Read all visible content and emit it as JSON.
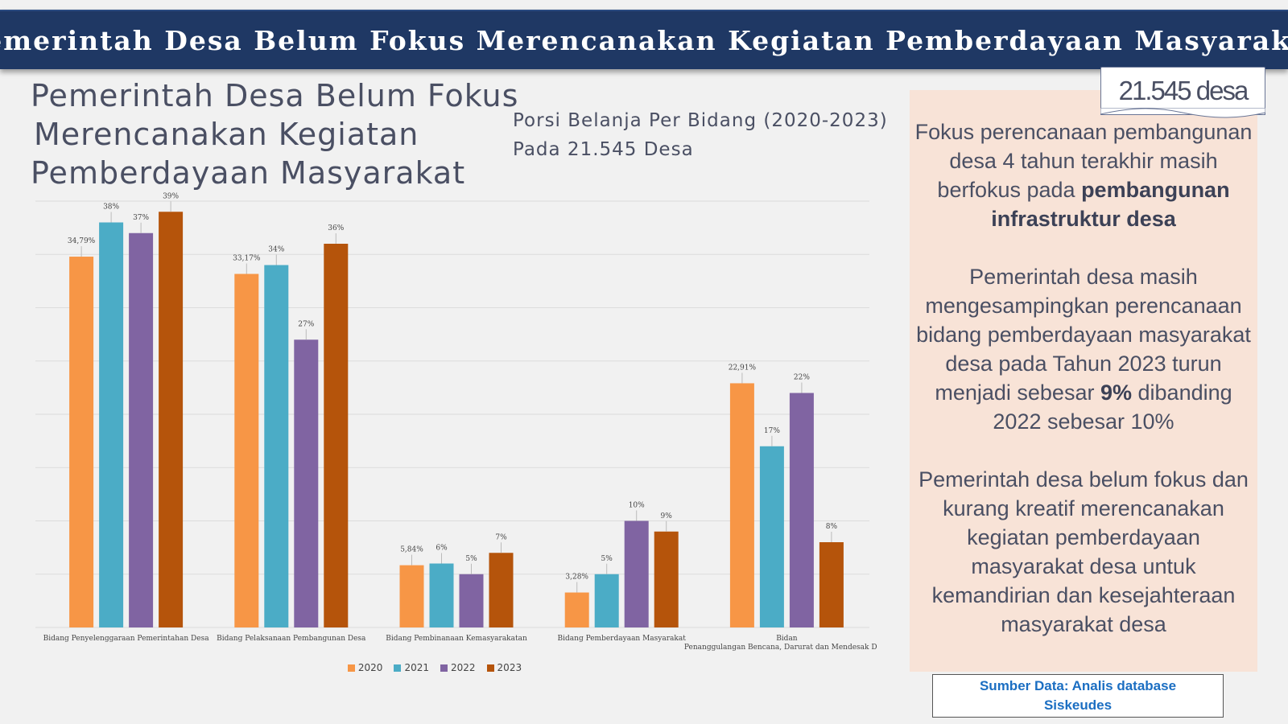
{
  "header": {
    "title": "Pemerintah Desa Belum Fokus Merencanakan Kegiatan Pemberdayaan Masyarakat"
  },
  "left_title": {
    "line1": "Pemerintah Desa Belum Fokus",
    "line2": "Merencanakan Kegiatan",
    "line3": "Pemberdayaan Masyarakat"
  },
  "chart_subtitle": {
    "line1": "Porsi Belanja Per Bidang (2020-2023)",
    "line2": "Pada 21.545 Desa"
  },
  "chart_data": {
    "type": "bar",
    "categories": [
      "Bidang Penyelenggaraan  Pemerintahan Desa",
      "Bidang Pelaksanaan Pembangunan Desa",
      "Bidang Pembinanaan Kemasyarakatan",
      "Bidang Pemberdayaan Masyarakat",
      "Bidang Penanggulangan Bencana, Darurat dan Mendesak Desa"
    ],
    "series": [
      {
        "name": "2020",
        "color": "#f79646",
        "values": [
          34.79,
          33.17,
          5.84,
          3.28,
          22.91
        ],
        "labels": [
          "34,79%",
          "33,17%",
          "5,84%",
          "3,28%",
          "22,91%"
        ]
      },
      {
        "name": "2021",
        "color": "#4bacc6",
        "values": [
          38,
          34,
          6,
          5,
          17
        ],
        "labels": [
          "38%",
          "34%",
          "6%",
          "5%",
          "17%"
        ]
      },
      {
        "name": "2022",
        "color": "#8064a2",
        "values": [
          37,
          27,
          5,
          10,
          22
        ],
        "labels": [
          "37%",
          "27%",
          "5%",
          "10%",
          "22%"
        ]
      },
      {
        "name": "2023",
        "color": "#b5540b",
        "values": [
          39,
          36,
          7,
          9,
          8
        ],
        "labels": [
          "39%",
          "36%",
          "7%",
          "9%",
          "8%"
        ]
      }
    ],
    "ylim": [
      0,
      40
    ],
    "grid": true,
    "legend_position": "bottom"
  },
  "badge": {
    "text": "21.545 desa"
  },
  "side_panel": {
    "p1_text": "Fokus perencanaan pembangunan desa 4 tahun terakhir masih berfokus pada",
    "p1_bold": "pembangunan infrastruktur desa",
    "p2_text": "Pemerintah desa masih mengesampingkan perencanaan bidang pemberdayaan masyarakat desa pada Tahun 2023 turun menjadi sebesar",
    "p2_bold": "9%",
    "p2_tail": "dibanding 2022 sebesar 10%",
    "p3_text": "Pemerintah desa belum fokus dan kurang kreatif merencanakan kegiatan pemberdayaan masyarakat desa untuk kemandirian dan kesejahteraan masyarakat desa"
  },
  "source": {
    "line1": "Sumber Data: Analis database",
    "line2": "Siskeudes"
  }
}
